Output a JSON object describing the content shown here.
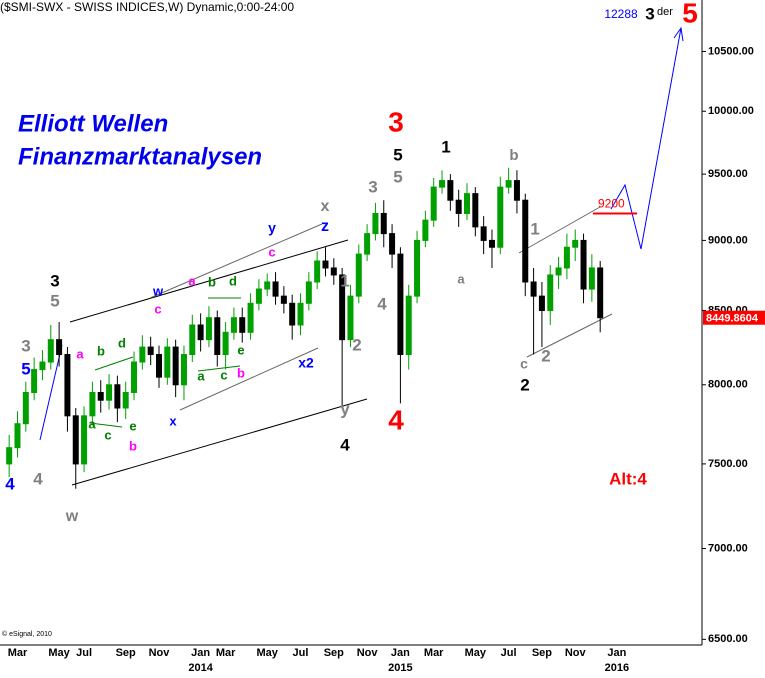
{
  "chart_data": {
    "type": "candlestick",
    "title": "($SMI-SWX - SWISS INDICES,W) Dynamic,0:00-24:00",
    "overlay_title": [
      "Elliott Wellen",
      "Finanzmarktanalysen"
    ],
    "credit": "© eSignal, 2010",
    "log_scale": true,
    "up_color": "#00a000",
    "down_color": "#000000",
    "ylim": [
      6470,
      10950
    ],
    "yticks": [
      {
        "value": 6500,
        "label": "6500.00"
      },
      {
        "value": 7000,
        "label": "7000.00"
      },
      {
        "value": 7500,
        "label": "7500.00"
      },
      {
        "value": 8000,
        "label": "8000.00"
      },
      {
        "value": 8500,
        "label": "8500.00"
      },
      {
        "value": 9000,
        "label": "9000.00"
      },
      {
        "value": 9500,
        "label": "9500.00"
      },
      {
        "value": 10000,
        "label": "10000.00"
      },
      {
        "value": 10500,
        "label": "10500.00"
      }
    ],
    "categories": [
      null,
      "Mar",
      null,
      null,
      null,
      null,
      "May",
      null,
      null,
      "Jul",
      null,
      null,
      null,
      null,
      "Sep",
      null,
      null,
      null,
      "Nov",
      null,
      null,
      null,
      null,
      "Jan",
      null,
      null,
      "Mar",
      null,
      null,
      null,
      null,
      "May",
      null,
      null,
      null,
      "Jul",
      null,
      null,
      null,
      "Sep",
      null,
      null,
      null,
      "Nov",
      null,
      null,
      null,
      "Jan",
      null,
      null,
      null,
      "Mar",
      null,
      null,
      null,
      null,
      "May",
      null,
      null,
      null,
      "Jul",
      null,
      null,
      null,
      "Sep",
      null,
      null,
      null,
      "Nov",
      null,
      null,
      null,
      null,
      "Jan"
    ],
    "category_years": [
      null,
      null,
      null,
      null,
      null,
      null,
      null,
      null,
      null,
      null,
      null,
      null,
      null,
      null,
      null,
      null,
      null,
      null,
      null,
      null,
      null,
      null,
      null,
      "2014",
      null,
      null,
      null,
      null,
      null,
      null,
      null,
      null,
      null,
      null,
      null,
      null,
      null,
      null,
      null,
      null,
      null,
      null,
      null,
      null,
      null,
      null,
      null,
      "2015",
      null,
      null,
      null,
      null,
      null,
      null,
      null,
      null,
      null,
      null,
      null,
      null,
      null,
      null,
      null,
      null,
      null,
      null,
      null,
      null,
      null,
      null,
      null,
      null,
      null,
      "2016"
    ],
    "open": [
      7500,
      7600,
      7750,
      7950,
      8100,
      8150,
      8300,
      8200,
      7800,
      7500,
      7800,
      7950,
      7900,
      8000,
      7850,
      7950,
      8150,
      8250,
      8200,
      8050,
      8250,
      8000,
      8200,
      8400,
      8300,
      8450,
      8200,
      8350,
      8450,
      8350,
      8550,
      8650,
      8700,
      8600,
      8550,
      8400,
      8550,
      8700,
      8850,
      8800,
      8750,
      8300,
      8600,
      8900,
      9050,
      9200,
      9050,
      8900,
      8200,
      8600,
      9000,
      9150,
      9400,
      9450,
      9300,
      9200,
      9350,
      9100,
      9000,
      8950,
      9400,
      9450,
      9300,
      8700,
      8600,
      8500,
      8750,
      8800,
      8950,
      9000,
      8650,
      8800,
      null,
      null
    ],
    "high": [
      7680,
      7830,
      8020,
      8180,
      8230,
      8400,
      8420,
      8250,
      7850,
      7860,
      8020,
      8030,
      8070,
      8060,
      8020,
      8220,
      8330,
      8320,
      8260,
      8310,
      8300,
      8260,
      8470,
      8480,
      8530,
      8500,
      8420,
      8520,
      8520,
      8620,
      8720,
      8760,
      8770,
      8670,
      8610,
      8620,
      8770,
      8920,
      8950,
      8870,
      8800,
      8680,
      8970,
      9120,
      9280,
      9300,
      9120,
      8950,
      8680,
      9070,
      9220,
      9470,
      9530,
      9500,
      9380,
      9430,
      9400,
      9180,
      9080,
      9480,
      9550,
      9530,
      9350,
      8800,
      8700,
      8820,
      8880,
      9050,
      9080,
      9050,
      8900,
      8850,
      null,
      null
    ],
    "low": [
      7420,
      7540,
      7700,
      7900,
      8030,
      8100,
      8120,
      7700,
      7350,
      7450,
      7740,
      7820,
      7840,
      7760,
      7780,
      7900,
      8100,
      8130,
      7980,
      8000,
      7920,
      7900,
      8150,
      8220,
      8250,
      8120,
      8100,
      8300,
      8280,
      8300,
      8500,
      8600,
      8540,
      8480,
      8300,
      8330,
      8500,
      8650,
      8740,
      8680,
      7850,
      8250,
      8550,
      8850,
      9000,
      8950,
      8800,
      7880,
      8100,
      8550,
      8950,
      9100,
      9350,
      9220,
      9100,
      9150,
      9030,
      8900,
      8800,
      8900,
      9350,
      9200,
      8600,
      8200,
      8250,
      8400,
      8650,
      8720,
      8850,
      8550,
      8560,
      8350,
      null,
      null
    ],
    "close": [
      7600,
      7750,
      7950,
      8100,
      8150,
      8300,
      8200,
      7800,
      7500,
      7800,
      7950,
      7900,
      8000,
      7850,
      7950,
      8150,
      8250,
      8200,
      8050,
      8250,
      8000,
      8200,
      8400,
      8300,
      8450,
      8200,
      8350,
      8450,
      8350,
      8550,
      8650,
      8700,
      8600,
      8550,
      8400,
      8550,
      8700,
      8850,
      8800,
      8750,
      8300,
      8600,
      8900,
      9050,
      9200,
      9050,
      8900,
      8200,
      8600,
      9000,
      9150,
      9400,
      9450,
      9300,
      9200,
      9350,
      9100,
      9000,
      8950,
      9400,
      9450,
      9300,
      8700,
      8600,
      8500,
      8750,
      8800,
      8950,
      9000,
      8650,
      8800,
      8450,
      null,
      null
    ],
    "last_price": 8449.8604,
    "levels": [
      {
        "value": 9200,
        "color": "#ff0000"
      }
    ],
    "annotations": [
      {
        "text": "3",
        "color": "#000000"
      },
      {
        "text": "5",
        "color": "#808080"
      },
      {
        "text": "3",
        "color": "#808080"
      },
      {
        "text": "5",
        "color": "#0000ff"
      },
      {
        "text": "4",
        "color": "#0000ff"
      },
      {
        "text": "4",
        "color": "#808080"
      },
      {
        "text": "w",
        "color": "#808080"
      },
      {
        "text": "a",
        "color": "#ff00ff"
      },
      {
        "text": "b",
        "color": "#008000"
      },
      {
        "text": "d",
        "color": "#008000"
      },
      {
        "text": "a",
        "color": "#008000"
      },
      {
        "text": "c",
        "color": "#008000"
      },
      {
        "text": "e",
        "color": "#008000"
      },
      {
        "text": "b",
        "color": "#ff00ff"
      },
      {
        "text": "w",
        "color": "#0000ff"
      },
      {
        "text": "c",
        "color": "#ff00ff"
      },
      {
        "text": "x",
        "color": "#0000ff"
      },
      {
        "text": "a",
        "color": "#ff00ff"
      },
      {
        "text": "b",
        "color": "#008000"
      },
      {
        "text": "d",
        "color": "#008000"
      },
      {
        "text": "a",
        "color": "#008000"
      },
      {
        "text": "c",
        "color": "#008000"
      },
      {
        "text": "e",
        "color": "#008000"
      },
      {
        "text": "b",
        "color": "#ff00ff"
      },
      {
        "text": "y",
        "color": "#0000ff"
      },
      {
        "text": "c",
        "color": "#ff00ff"
      },
      {
        "text": "x2",
        "color": "#0000ff"
      },
      {
        "text": "x",
        "color": "#808080"
      },
      {
        "text": "z",
        "color": "#0000ff"
      },
      {
        "text": "1",
        "color": "#808080"
      },
      {
        "text": "2",
        "color": "#808080"
      },
      {
        "text": "y",
        "color": "#808080"
      },
      {
        "text": "4",
        "color": "#000000"
      },
      {
        "text": "3",
        "color": "#808080"
      },
      {
        "text": "5",
        "color": "#808080"
      },
      {
        "text": "5",
        "color": "#000000"
      },
      {
        "text": "4",
        "color": "#808080"
      },
      {
        "text": "3",
        "color": "#ff0000"
      },
      {
        "text": "4",
        "color": "#ff0000"
      },
      {
        "text": "1",
        "color": "#000000"
      },
      {
        "text": "a",
        "color": "#808080"
      },
      {
        "text": "b",
        "color": "#808080"
      },
      {
        "text": "1",
        "color": "#808080"
      },
      {
        "text": "c",
        "color": "#808080"
      },
      {
        "text": "2",
        "color": "#808080"
      },
      {
        "text": "2",
        "color": "#000000"
      },
      {
        "text": "Alt:4",
        "color": "#ff0000"
      },
      {
        "text": "12288",
        "color": "#0000ff"
      },
      {
        "text": "3",
        "color": "#000000"
      },
      {
        "text": "der",
        "color": "#000000"
      },
      {
        "text": "5",
        "color": "#ff0000"
      }
    ]
  }
}
